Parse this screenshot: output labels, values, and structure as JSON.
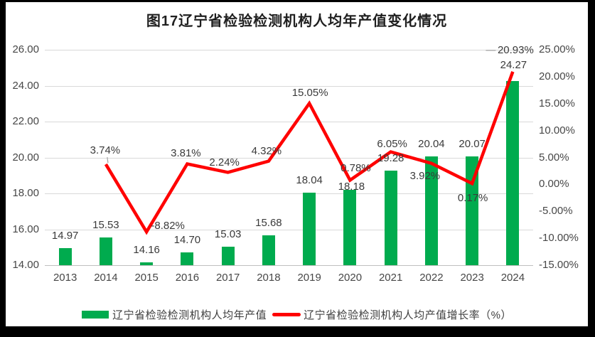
{
  "frame": {
    "border_color": "#000000",
    "chart_background": "#ffffff"
  },
  "chart_data": {
    "type": "combo",
    "title": "图17辽宁省检验检测机构人均年产值变化情况",
    "categories": [
      "2013",
      "2014",
      "2015",
      "2016",
      "2017",
      "2018",
      "2019",
      "2020",
      "2021",
      "2022",
      "2023",
      "2024"
    ],
    "series": [
      {
        "name": "辽宁省检验检测机构人均年产值",
        "type": "bar",
        "axis": "left",
        "color": "#00AB4E",
        "values": [
          14.97,
          15.53,
          14.16,
          14.7,
          15.03,
          15.68,
          18.04,
          18.18,
          19.28,
          20.04,
          20.07,
          24.27
        ],
        "labels": [
          "14.97",
          "15.53",
          "14.16",
          "14.70",
          "15.03",
          "15.68",
          "18.04",
          "18.18",
          "19.28",
          "20.04",
          "20.07",
          "24.27"
        ]
      },
      {
        "name": "辽宁省检验检测机构人均产值增长率（%）",
        "type": "line",
        "axis": "right",
        "color": "#FF0000",
        "values": [
          null,
          3.74,
          -8.82,
          3.81,
          2.24,
          4.32,
          15.05,
          0.78,
          6.05,
          3.92,
          0.17,
          20.93
        ],
        "labels": [
          null,
          "3.74%",
          "-8.82%",
          "3.81%",
          "2.24%",
          "4.32%",
          "15.05%",
          "0.78%",
          "6.05%",
          "3.92%",
          "0.17%",
          "20.93%"
        ]
      }
    ],
    "left_axis": {
      "min": 14,
      "max": 26,
      "step": 2,
      "ticks": [
        "26.00",
        "24.00",
        "22.00",
        "20.00",
        "18.00",
        "16.00",
        "14.00"
      ]
    },
    "right_axis": {
      "min": -15,
      "max": 25,
      "step": 5,
      "ticks": [
        "25.00%",
        "20.00%",
        "15.00%",
        "10.00%",
        "5.00%",
        "0.00%",
        "-5.00%",
        "-10.00%",
        "-15.00%"
      ]
    },
    "grid": "horizontal",
    "legend_position": "bottom",
    "label_color": "#3a3a3a",
    "gridline_color": "#d9d9d9",
    "leader_color": "#a6a6a6",
    "layout": {
      "line_label_offsets": {
        "1": [
          -1,
          -19,
          "v"
        ],
        "2": [
          30,
          -8
        ],
        "3": [
          -2,
          -15
        ],
        "4": [
          -5,
          -13
        ],
        "5": [
          -3,
          -14
        ],
        "6": [
          1,
          -14
        ],
        "7": [
          8,
          -16
        ],
        "8": [
          2,
          -11
        ],
        "9": [
          -9,
          18
        ],
        "10": [
          1,
          21
        ],
        "11": [
          4,
          -30,
          "h"
        ]
      },
      "bar_label_offsets": {
        "7": [
          2,
          13
        ],
        "11": [
          1,
          -5
        ]
      }
    }
  }
}
